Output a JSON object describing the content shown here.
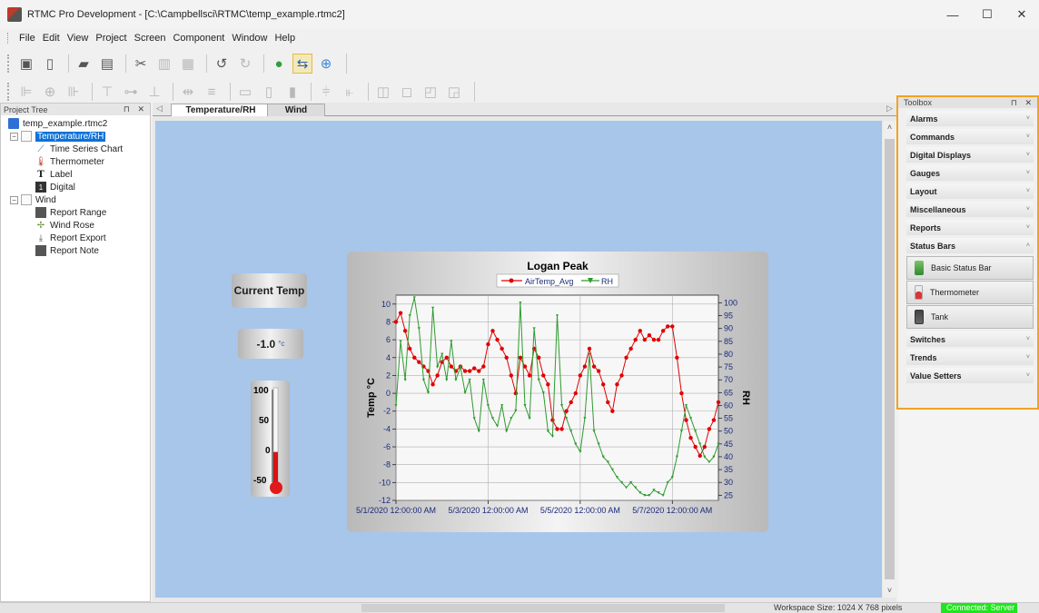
{
  "window": {
    "title": "RTMC Pro Development - [C:\\Campbellsci\\RTMC\\temp_example.rtmc2]",
    "controls": {
      "minimize": "—",
      "maximize": "☐",
      "close": "✕"
    }
  },
  "menu": [
    "File",
    "Edit",
    "View",
    "Project",
    "Screen",
    "Component",
    "Window",
    "Help"
  ],
  "project_tree": {
    "header": "Project Tree",
    "header_controls": "⊓ ✕",
    "root": "temp_example.rtmc2",
    "screens": [
      {
        "label": "Temperature/RH",
        "children": [
          "Time Series Chart",
          "Thermometer",
          "Label",
          "Digital"
        ]
      },
      {
        "label": "Wind",
        "children": [
          "Report Range",
          "Wind Rose",
          "Report Export",
          "Report Note"
        ]
      }
    ]
  },
  "tabs": {
    "nav_left": "◁",
    "nav_right": "▷",
    "items": [
      "Temperature/RH",
      "Wind"
    ],
    "active": 0
  },
  "screen": {
    "label_text": "Current Temp",
    "digital_value": "-1.0",
    "digital_unit": "°c",
    "thermometer": {
      "ticks": [
        "100",
        "50",
        "0",
        "-50"
      ],
      "min": -50,
      "max": 100,
      "value": -1.0
    }
  },
  "chart_data": {
    "type": "line",
    "title": "Logan Peak",
    "xlabel": "",
    "ylabel": "Temp °C",
    "y2label": "RH",
    "legend": "top-center",
    "grid": true,
    "xlim": [
      "5/1/2020 12:00:00 AM",
      "5/8/2020 12:00:00 AM"
    ],
    "x_ticks": [
      "5/1/2020 12:00:00 AM",
      "5/3/2020 12:00:00 AM",
      "5/5/2020 12:00:00 AM",
      "5/7/2020 12:00:00 AM"
    ],
    "ylim": [
      -12,
      11
    ],
    "y_ticks": [
      "10",
      "8",
      "6",
      "4",
      "2",
      "0",
      "-2",
      "-4",
      "-6",
      "-8",
      "-10",
      "-12"
    ],
    "y2lim": [
      23,
      103
    ],
    "y2_ticks": [
      "100",
      "95",
      "90",
      "85",
      "80",
      "75",
      "70",
      "65",
      "60",
      "55",
      "50",
      "45",
      "40",
      "35",
      "30",
      "25"
    ],
    "series": [
      {
        "name": "AirTemp_Avg",
        "color": "#e00000",
        "axis": "left",
        "x": [
          0,
          0.1,
          0.2,
          0.3,
          0.4,
          0.5,
          0.6,
          0.7,
          0.8,
          0.9,
          1.0,
          1.1,
          1.2,
          1.3,
          1.4,
          1.5,
          1.6,
          1.7,
          1.8,
          1.9,
          2.0,
          2.1,
          2.2,
          2.3,
          2.4,
          2.5,
          2.6,
          2.7,
          2.8,
          2.9,
          3.0,
          3.1,
          3.2,
          3.3,
          3.4,
          3.5,
          3.6,
          3.7,
          3.8,
          3.9,
          4.0,
          4.1,
          4.2,
          4.3,
          4.4,
          4.5,
          4.6,
          4.7,
          4.8,
          4.9,
          5.0,
          5.1,
          5.2,
          5.3,
          5.4,
          5.5,
          5.6,
          5.7,
          5.8,
          5.9,
          6.0,
          6.1,
          6.2,
          6.3,
          6.4,
          6.5,
          6.6,
          6.7,
          6.8,
          6.9,
          7.0
        ],
        "y": [
          8.0,
          9.0,
          7.0,
          5.0,
          4.0,
          3.5,
          3.0,
          2.5,
          1.0,
          2.0,
          3.5,
          4.0,
          3.0,
          2.5,
          3.0,
          2.5,
          2.5,
          2.8,
          2.5,
          3.0,
          5.5,
          7.0,
          6.0,
          5.0,
          4.0,
          2.0,
          0.0,
          4.0,
          3.0,
          2.0,
          5.0,
          4.0,
          2.0,
          1.0,
          -3.0,
          -4.0,
          -4.0,
          -2.0,
          -1.0,
          0.0,
          2.0,
          3.0,
          5.0,
          3.0,
          2.5,
          1.0,
          -1.0,
          -2.0,
          1.0,
          2.0,
          4.0,
          5.0,
          6.0,
          7.0,
          6.0,
          6.5,
          6.0,
          6.0,
          7.0,
          7.5,
          7.5,
          4.0,
          0.0,
          -3.0,
          -5.0,
          -6.0,
          -7.0,
          -6.0,
          -4.0,
          -3.0,
          -1.0
        ]
      },
      {
        "name": "RH",
        "color": "#2e9a2e",
        "axis": "right",
        "x": [
          0,
          0.1,
          0.2,
          0.3,
          0.4,
          0.5,
          0.6,
          0.7,
          0.8,
          0.9,
          1.0,
          1.1,
          1.2,
          1.3,
          1.4,
          1.5,
          1.6,
          1.7,
          1.8,
          1.9,
          2.0,
          2.1,
          2.2,
          2.3,
          2.4,
          2.5,
          2.6,
          2.7,
          2.8,
          2.9,
          3.0,
          3.1,
          3.2,
          3.3,
          3.4,
          3.5,
          3.6,
          3.7,
          3.8,
          3.9,
          4.0,
          4.1,
          4.2,
          4.3,
          4.4,
          4.5,
          4.6,
          4.7,
          4.8,
          4.9,
          5.0,
          5.1,
          5.2,
          5.3,
          5.4,
          5.5,
          5.6,
          5.7,
          5.8,
          5.9,
          6.0,
          6.1,
          6.2,
          6.3,
          6.4,
          6.5,
          6.6,
          6.7,
          6.8,
          6.9,
          7.0
        ],
        "y": [
          60,
          85,
          70,
          95,
          102,
          90,
          70,
          65,
          98,
          75,
          80,
          70,
          85,
          70,
          75,
          65,
          70,
          55,
          50,
          70,
          60,
          55,
          52,
          60,
          50,
          55,
          58,
          100,
          60,
          55,
          90,
          70,
          65,
          50,
          48,
          95,
          60,
          55,
          50,
          45,
          42,
          55,
          80,
          50,
          45,
          40,
          38,
          35,
          32,
          30,
          28,
          30,
          28,
          26,
          25,
          25,
          27,
          26,
          25,
          30,
          32,
          40,
          50,
          60,
          55,
          50,
          45,
          40,
          38,
          40,
          45
        ]
      }
    ]
  },
  "toolbox": {
    "header": "Toolbox",
    "header_controls": "⊓ ✕",
    "categories": [
      "Alarms",
      "Commands",
      "Digital Displays",
      "Gauges",
      "Layout",
      "Miscellaneous",
      "Reports",
      "Status Bars",
      "Switches",
      "Trends",
      "Value Setters"
    ],
    "expanded": "Status Bars",
    "status_bar_items": [
      "Basic Status Bar",
      "Thermometer",
      "Tank"
    ]
  },
  "status": {
    "workspace": "Workspace Size: 1024 X 768 pixels",
    "connection": "Connected: Server"
  }
}
